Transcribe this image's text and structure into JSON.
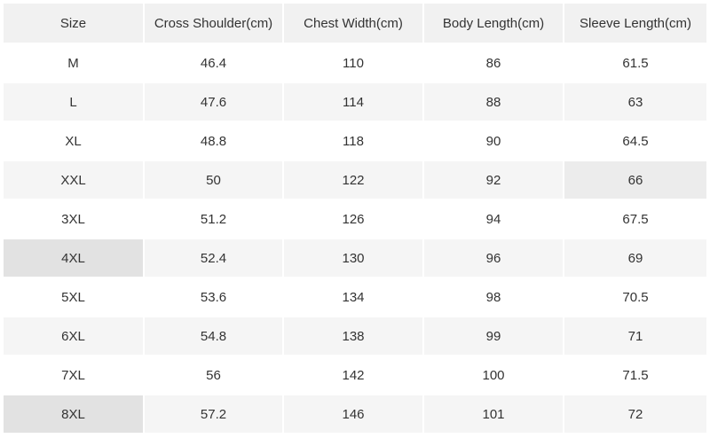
{
  "table": {
    "header": [
      "Size",
      "Cross Shoulder(cm)",
      "Chest Width(cm)",
      "Body Length(cm)",
      "Sleeve Length(cm)"
    ],
    "rows": [
      [
        "M",
        "46.4",
        "110",
        "86",
        "61.5"
      ],
      [
        "L",
        "47.6",
        "114",
        "88",
        "63"
      ],
      [
        "XL",
        "48.8",
        "118",
        "90",
        "64.5"
      ],
      [
        "XXL",
        "50",
        "122",
        "92",
        "66"
      ],
      [
        "3XL",
        "51.2",
        "126",
        "94",
        "67.5"
      ],
      [
        "4XL",
        "52.4",
        "130",
        "96",
        "69"
      ],
      [
        "5XL",
        "53.6",
        "134",
        "98",
        "70.5"
      ],
      [
        "6XL",
        "54.8",
        "138",
        "99",
        "71"
      ],
      [
        "7XL",
        "56",
        "142",
        "100",
        "71.5"
      ],
      [
        "8XL",
        "57.2",
        "146",
        "101",
        "72"
      ]
    ]
  }
}
